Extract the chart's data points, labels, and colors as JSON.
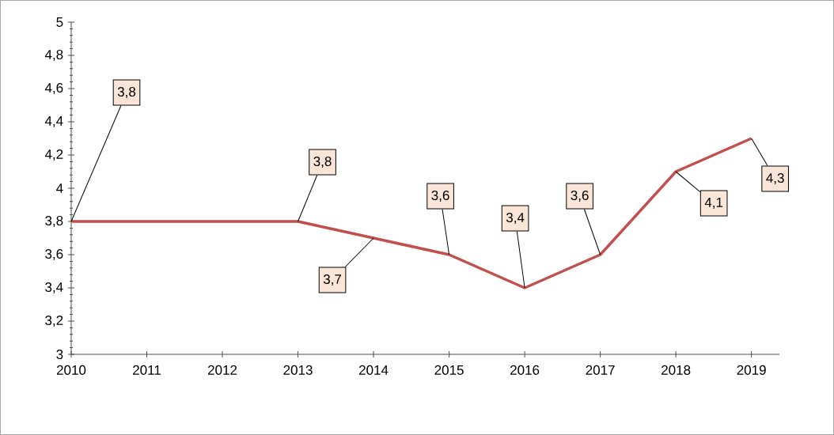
{
  "chart_data": {
    "type": "line",
    "categories": [
      "2010",
      "2011",
      "2012",
      "2013",
      "2014",
      "2015",
      "2016",
      "2017",
      "2018",
      "2019"
    ],
    "values": [
      3.8,
      3.8,
      3.8,
      3.8,
      3.7,
      3.6,
      3.4,
      3.6,
      4.1,
      4.3
    ],
    "value_labels": [
      "3,8",
      null,
      null,
      "3,8",
      "3,7",
      "3,6",
      "3,4",
      "3,6",
      "4,1",
      "4,3"
    ],
    "color": "#c0504d",
    "ylim": [
      3,
      5
    ],
    "yticks": [
      3,
      {
        "value": 3.2,
        "label": "3,2"
      },
      {
        "value": 3.4,
        "label": "3,4"
      },
      {
        "value": 3.6,
        "label": "3,6"
      },
      {
        "value": 3.8,
        "label": "3,8"
      },
      4,
      {
        "value": 4.2,
        "label": "4,2"
      },
      {
        "value": 4.4,
        "label": "4,4"
      },
      {
        "value": 4.6,
        "label": "4,6"
      },
      {
        "value": 4.8,
        "label": "4,8"
      },
      5
    ],
    "grid": false,
    "marker": "none",
    "line_style": "solid"
  }
}
